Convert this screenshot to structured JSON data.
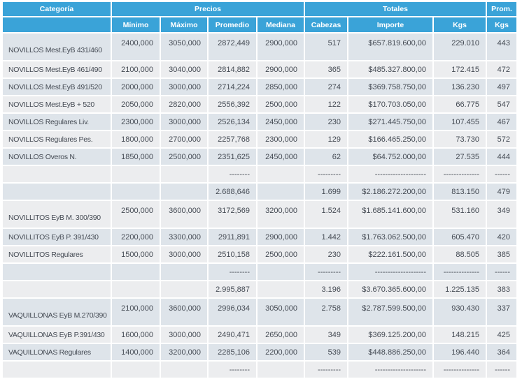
{
  "table": {
    "header": {
      "groups": [
        {
          "label": "Categoría",
          "colspan": 1
        },
        {
          "label": "Precios",
          "colspan": 4
        },
        {
          "label": "Totales",
          "colspan": 3
        },
        {
          "label": "Prom.",
          "colspan": 1
        }
      ],
      "columns": [
        "",
        "Mínimo",
        "Máximo",
        "Promedio",
        "Mediana",
        "Cabezas",
        "Importe",
        "Kgs",
        "Kgs"
      ]
    },
    "rows": [
      {
        "type": "data",
        "tall": true,
        "label": "NOVILLOS Mest.EyB 431/460",
        "values": [
          "2400,000",
          "3050,000",
          "2872,449",
          "2900,000",
          "517",
          "$657.819.600,00",
          "229.010",
          "443"
        ]
      },
      {
        "type": "data",
        "label": "NOVILLOS Mest.EyB 461/490",
        "values": [
          "2100,000",
          "3040,000",
          "2814,882",
          "2900,000",
          "365",
          "$485.327.800,00",
          "172.415",
          "472"
        ]
      },
      {
        "type": "data",
        "label": "NOVILLOS Mest.EyB 491/520",
        "values": [
          "2000,000",
          "3000,000",
          "2714,224",
          "2850,000",
          "274",
          "$369.758.750,00",
          "136.230",
          "497"
        ]
      },
      {
        "type": "data",
        "label": "NOVILLOS Mest.EyB + 520",
        "values": [
          "2050,000",
          "2820,000",
          "2556,392",
          "2500,000",
          "122",
          "$170.703.050,00",
          "66.775",
          "547"
        ]
      },
      {
        "type": "data",
        "label": "NOVILLOS Regulares Liv.",
        "values": [
          "2300,000",
          "3000,000",
          "2526,134",
          "2450,000",
          "230",
          "$271.445.750,00",
          "107.455",
          "467"
        ]
      },
      {
        "type": "data",
        "label": "NOVILLOS Regulares Pes.",
        "values": [
          "1800,000",
          "2700,000",
          "2257,768",
          "2300,000",
          "129",
          "$166.465.250,00",
          "73.730",
          "572"
        ]
      },
      {
        "type": "data",
        "label": "NOVILLOS Overos N.",
        "values": [
          "1850,000",
          "2500,000",
          "2351,625",
          "2450,000",
          "62",
          "$64.752.000,00",
          "27.535",
          "444"
        ]
      },
      {
        "type": "dashes",
        "label": "",
        "values": [
          "",
          "",
          "--------",
          "",
          "---------",
          "--------------------",
          "--------------",
          "------"
        ]
      },
      {
        "type": "subtotal",
        "label": "",
        "values": [
          "",
          "",
          "2.688,646",
          "",
          "1.699",
          "$2.186.272.200,00",
          "813.150",
          "479"
        ]
      },
      {
        "type": "data",
        "tall": true,
        "label": "NOVILLITOS EyB M. 300/390",
        "values": [
          "2500,000",
          "3600,000",
          "3172,569",
          "3200,000",
          "1.524",
          "$1.685.141.600,00",
          "531.160",
          "349"
        ]
      },
      {
        "type": "data",
        "label": "NOVILLITOS EyB P. 391/430",
        "values": [
          "2200,000",
          "3300,000",
          "2911,891",
          "2900,000",
          "1.442",
          "$1.763.062.500,00",
          "605.470",
          "420"
        ]
      },
      {
        "type": "data",
        "label": "NOVILLITOS Regulares",
        "values": [
          "1500,000",
          "3000,000",
          "2510,158",
          "2500,000",
          "230",
          "$222.161.500,00",
          "88.505",
          "385"
        ]
      },
      {
        "type": "dashes",
        "label": "",
        "values": [
          "",
          "",
          "--------",
          "",
          "---------",
          "--------------------",
          "--------------",
          "------"
        ]
      },
      {
        "type": "subtotal",
        "label": "",
        "values": [
          "",
          "",
          "2.995,887",
          "",
          "3.196",
          "$3.670.365.600,00",
          "1.225.135",
          "383"
        ]
      },
      {
        "type": "data",
        "tall": true,
        "label": "VAQUILLONAS EyB M.270/390",
        "values": [
          "2100,000",
          "3600,000",
          "2996,034",
          "3050,000",
          "2.758",
          "$2.787.599.500,00",
          "930.430",
          "337"
        ]
      },
      {
        "type": "data",
        "label": "VAQUILLONAS EyB P.391/430",
        "values": [
          "1600,000",
          "3000,000",
          "2490,471",
          "2650,000",
          "349",
          "$369.125.200,00",
          "148.215",
          "425"
        ]
      },
      {
        "type": "data",
        "label": "VAQUILLONAS Regulares",
        "values": [
          "1400,000",
          "3200,000",
          "2285,106",
          "2200,000",
          "539",
          "$448.886.250,00",
          "196.440",
          "364"
        ]
      },
      {
        "type": "dashes",
        "label": "",
        "values": [
          "",
          "",
          "--------",
          "",
          "---------",
          "--------------------",
          "--------------",
          "------"
        ]
      }
    ],
    "colors": {
      "header_bg": "#3aa3d8",
      "row_dark": "#dee4ea",
      "row_light": "#ecedef",
      "text": "#454b54"
    }
  }
}
